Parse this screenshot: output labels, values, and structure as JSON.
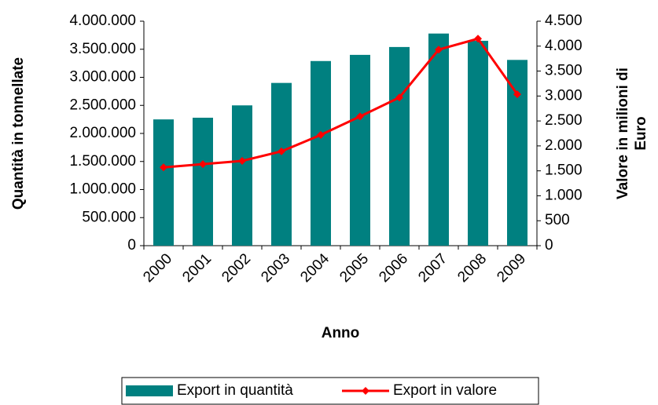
{
  "chart_data": {
    "type": "bar_line",
    "xlabel": "Anno",
    "ylabel": "Quantità in tonnellate",
    "y2label": [
      "Valore in milioni di",
      "Euro"
    ],
    "categories": [
      "2000",
      "2001",
      "2002",
      "2003",
      "2004",
      "2005",
      "2006",
      "2007",
      "2008",
      "2009"
    ],
    "series": [
      {
        "name": "Export in quantità",
        "type": "bar",
        "color": "#008080",
        "values": [
          2250000,
          2280000,
          2500000,
          2900000,
          3290000,
          3400000,
          3540000,
          3780000,
          3650000,
          3310000
        ]
      },
      {
        "name": "Export in valore",
        "type": "line",
        "color": "#ff0000",
        "axis": "y2",
        "values": [
          1570,
          1635,
          1700,
          1890,
          2220,
          2590,
          2970,
          3930,
          4150,
          3035
        ]
      }
    ],
    "ylim": [
      0,
      4000000
    ],
    "yticks": [
      0,
      {
        "value": 500000,
        "label": "500.000"
      },
      {
        "value": 1000000,
        "label": "1.000.000"
      },
      {
        "value": 1500000,
        "label": "1.500.000"
      },
      {
        "value": 2000000,
        "label": "2.000.000"
      },
      {
        "value": 2500000,
        "label": "2.500.000"
      },
      {
        "value": 3000000,
        "label": "3.000.000"
      },
      {
        "value": 3500000,
        "label": "3.500.000"
      },
      {
        "value": 4000000,
        "label": "4.000.000"
      }
    ],
    "y2lim": [
      0,
      4500
    ],
    "y2ticks": [
      0,
      500,
      {
        "value": 1000,
        "label": "1.000"
      },
      {
        "value": 1500,
        "label": "1.500"
      },
      {
        "value": 2000,
        "label": "2.000"
      },
      {
        "value": 2500,
        "label": "2.500"
      },
      {
        "value": 3000,
        "label": "3.000"
      },
      {
        "value": 3500,
        "label": "3.500"
      },
      {
        "value": 4000,
        "label": "4.000"
      },
      {
        "value": 4500,
        "label": "4.500"
      }
    ],
    "grid": false,
    "legend": "bottom"
  }
}
